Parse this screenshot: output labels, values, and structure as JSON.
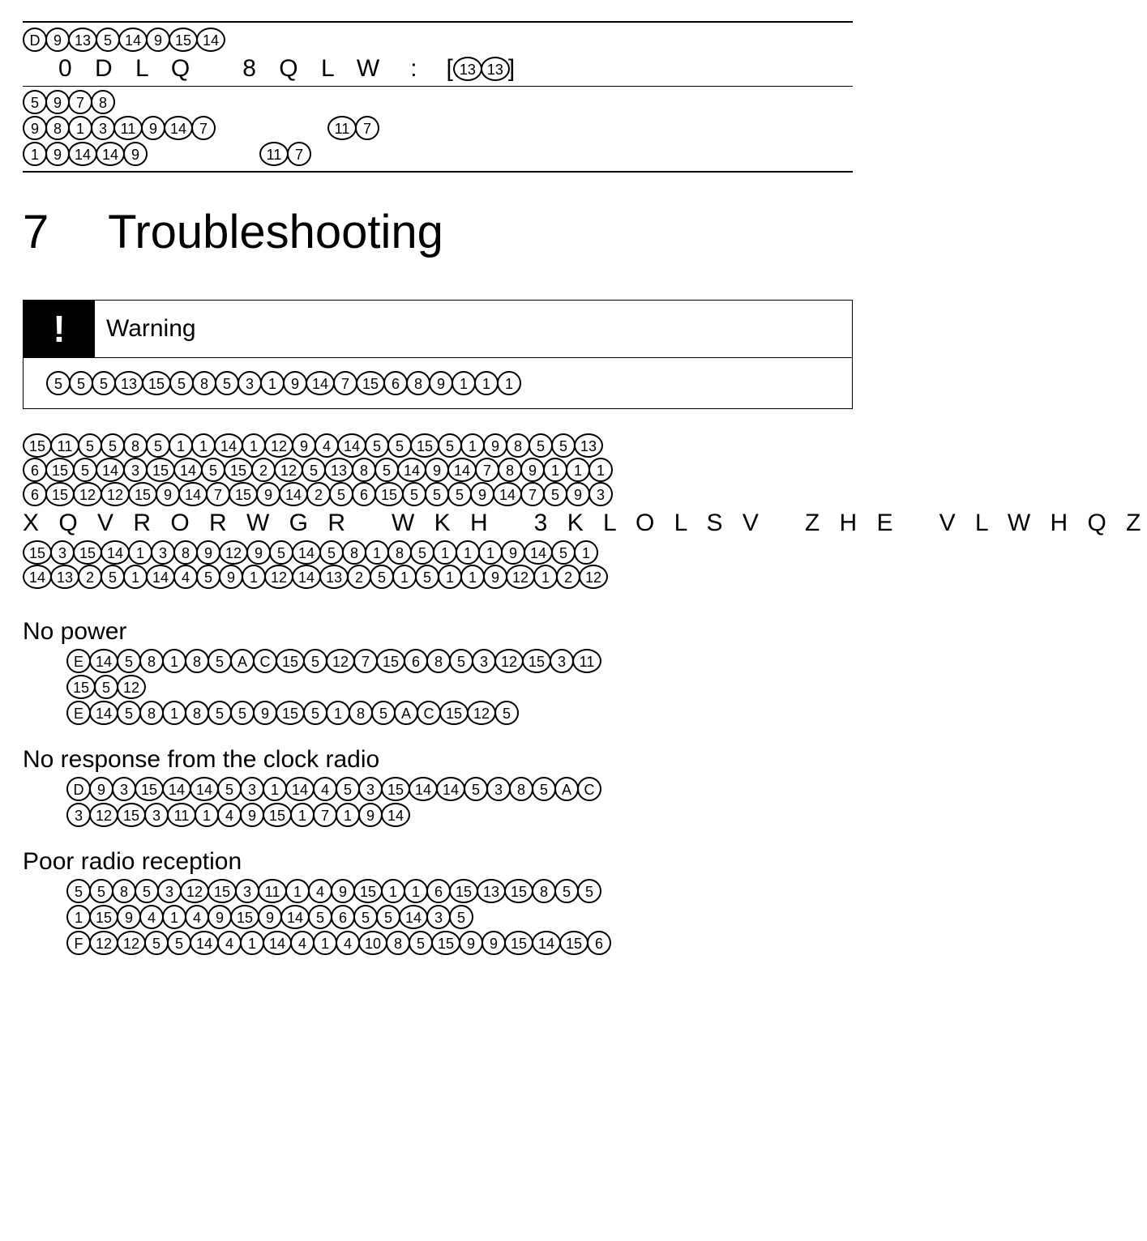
{
  "top_table": {
    "row1": [
      "D",
      "9",
      "13",
      "5",
      "14",
      "9",
      "15",
      "14"
    ],
    "text_line_left": "0 D L Q   8 Q L W",
    "text_line_sep": ":",
    "text_line_right_circles": [
      "13",
      "13"
    ],
    "row2": [
      "5",
      "9",
      "7",
      "8"
    ],
    "row3a_left": [
      "9",
      "8",
      "1",
      "3",
      "11",
      "9",
      "14",
      "7"
    ],
    "row3a_right": [
      "11",
      "7"
    ],
    "row3b_left": [
      "1",
      "9",
      "14",
      "14",
      "9"
    ],
    "row3b_right": [
      "11",
      "7"
    ]
  },
  "section": {
    "number": "7",
    "title": "Troubleshooting"
  },
  "warning": {
    "label": "Warning",
    "body_row": [
      "5",
      "5",
      "5",
      "13",
      "15",
      "5",
      "8",
      "5",
      "3",
      "1",
      "9",
      "14",
      "7",
      "15",
      "6",
      "8",
      "9",
      "1",
      "1",
      "1"
    ]
  },
  "paragraph": {
    "rows": [
      [
        "15",
        "11",
        "5",
        "5",
        "8",
        "5",
        "1",
        "1",
        "14",
        "1",
        "12",
        "9",
        "4",
        "14",
        "5",
        "5",
        "15",
        "5",
        "1",
        "9",
        "8",
        "5",
        "5",
        "13"
      ],
      [
        "6",
        "15",
        "5",
        "14",
        "3",
        "15",
        "14",
        "5",
        "15",
        "2",
        "12",
        "5",
        "13",
        "8",
        "5",
        "14",
        "9",
        "14",
        "7",
        "8",
        "9",
        "1",
        "1",
        "1"
      ],
      [
        "6",
        "15",
        "12",
        "12",
        "15",
        "9",
        "14",
        "7",
        "15",
        "9",
        "14",
        "2",
        "5",
        "6",
        "15",
        "5",
        "5",
        "5",
        "9",
        "14",
        "7",
        "5",
        "9",
        "3"
      ]
    ],
    "text_line": "X Q V R O R W G R   W K H   3 K L O L S V   Z H E   V L W H Q Z",
    "rows2": [
      [
        "15",
        "3",
        "15",
        "14",
        "1",
        "3",
        "8",
        "9",
        "12",
        "9",
        "5",
        "14",
        "5",
        "8",
        "1",
        "8",
        "5",
        "1",
        "1",
        "1",
        "9",
        "14",
        "5",
        "1"
      ],
      [
        "14",
        "13",
        "2",
        "5",
        "1",
        "14",
        "4",
        "5",
        "9",
        "1",
        "12",
        "14",
        "13",
        "2",
        "5",
        "1",
        "5",
        "1",
        "1",
        "9",
        "12",
        "1",
        "2",
        "12"
      ]
    ]
  },
  "items": [
    {
      "heading": "No power",
      "rows": [
        [
          "E",
          "14",
          "5",
          "8",
          "1",
          "8",
          "5",
          "A",
          "C",
          "15",
          "5",
          "12",
          "7",
          "15",
          "6",
          "8",
          "5",
          "3",
          "12",
          "15",
          "3",
          "11"
        ],
        [
          "15",
          "5",
          "12"
        ],
        [
          "E",
          "14",
          "5",
          "8",
          "1",
          "8",
          "5",
          "5",
          "9",
          "15",
          "5",
          "1",
          "8",
          "5",
          "A",
          "C",
          "15",
          "12",
          "5"
        ]
      ]
    },
    {
      "heading": "No response from the clock radio",
      "rows": [
        [
          "D",
          "9",
          "3",
          "15",
          "14",
          "14",
          "5",
          "3",
          "1",
          "14",
          "4",
          "5",
          "3",
          "15",
          "14",
          "14",
          "5",
          "3",
          "8",
          "5",
          "A",
          "C"
        ],
        [
          "3",
          "12",
          "15",
          "3",
          "11",
          "1",
          "4",
          "9",
          "15",
          "1",
          "7",
          "1",
          "9",
          "14"
        ]
      ]
    },
    {
      "heading": "Poor radio reception",
      "rows": [
        [
          "5",
          "5",
          "8",
          "5",
          "3",
          "12",
          "15",
          "3",
          "11",
          "1",
          "4",
          "9",
          "15",
          "1",
          "1",
          "6",
          "15",
          "13",
          "15",
          "8",
          "5",
          "5"
        ],
        [
          "1",
          "15",
          "9",
          "4",
          "1",
          "4",
          "9",
          "15",
          "9",
          "14",
          "5",
          "6",
          "5",
          "5",
          "14",
          "3",
          "5"
        ],
        [
          "F",
          "12",
          "12",
          "5",
          "5",
          "14",
          "4",
          "1",
          "14",
          "4",
          "1",
          "4",
          "10",
          "8",
          "5",
          "15",
          "9",
          "9",
          "15",
          "14",
          "15",
          "6"
        ]
      ]
    }
  ]
}
